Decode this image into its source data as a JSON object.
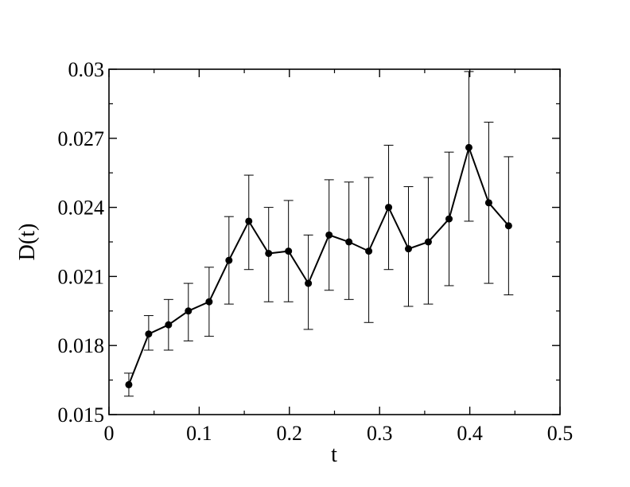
{
  "chart_data": {
    "type": "line",
    "title": "",
    "xlabel": "t",
    "ylabel": "D(t)",
    "xlim": [
      0,
      0.5
    ],
    "ylim": [
      0.015,
      0.03
    ],
    "xticks": [
      "0",
      "0.1",
      "0.2",
      "0.3",
      "0.4",
      "0.5"
    ],
    "yticks": [
      "0.015",
      "0.018",
      "0.021",
      "0.024",
      "0.027",
      "0.03"
    ],
    "grid": false,
    "series": [
      {
        "x": [
          0.022,
          0.044,
          0.066,
          0.088,
          0.111,
          0.133,
          0.155,
          0.177,
          0.199,
          0.221,
          0.244,
          0.266,
          0.288,
          0.31,
          0.332,
          0.354,
          0.377,
          0.399,
          0.421,
          0.443
        ],
        "y": [
          0.0163,
          0.0185,
          0.0189,
          0.0195,
          0.0199,
          0.0217,
          0.0234,
          0.022,
          0.0221,
          0.0207,
          0.0228,
          0.0225,
          0.0221,
          0.024,
          0.0222,
          0.0225,
          0.0235,
          0.0266,
          0.0242,
          0.0232
        ],
        "err_low": [
          0.0158,
          0.0178,
          0.0178,
          0.0182,
          0.0184,
          0.0198,
          0.0213,
          0.0199,
          0.0199,
          0.0187,
          0.0204,
          0.02,
          0.019,
          0.0213,
          0.0197,
          0.0198,
          0.0206,
          0.0234,
          0.0207,
          0.0202
        ],
        "err_high": [
          0.0168,
          0.0193,
          0.02,
          0.0207,
          0.0214,
          0.0236,
          0.0254,
          0.024,
          0.0243,
          0.0228,
          0.0252,
          0.0251,
          0.0253,
          0.0267,
          0.0249,
          0.0253,
          0.0264,
          0.0299,
          0.0277,
          0.0262
        ]
      }
    ],
    "colors": {
      "line": "#000000",
      "marker": "#000000"
    }
  }
}
